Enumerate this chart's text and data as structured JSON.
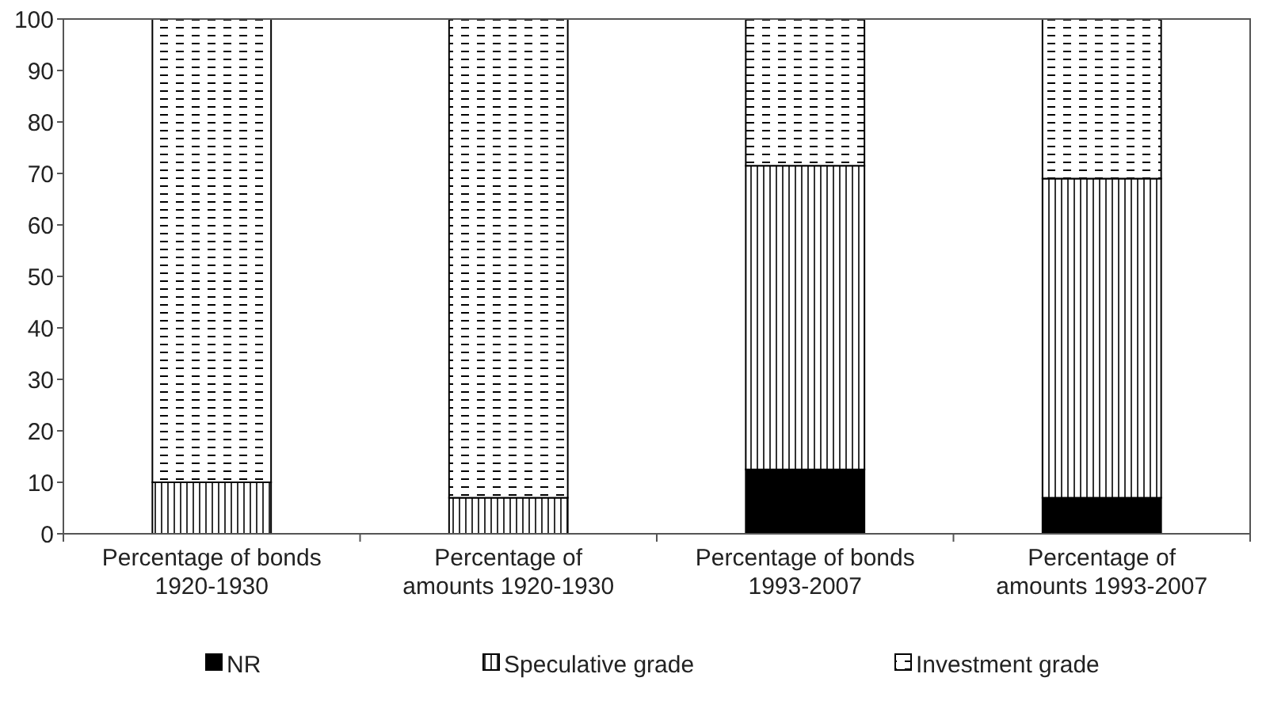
{
  "chart_data": {
    "type": "bar",
    "stacked": true,
    "categories": [
      "Percentage of bonds 1920-1930",
      "Percentage of amounts 1920-1930",
      "Percentage of bonds 1993-2007",
      "Percentage of amounts 1993-2007"
    ],
    "series": [
      {
        "name": "NR",
        "color": "#000000",
        "values": [
          0,
          0,
          12.5,
          7
        ]
      },
      {
        "name": "Speculative grade",
        "color": "#000000",
        "values": [
          10,
          7,
          59,
          62
        ]
      },
      {
        "name": "Investment grade",
        "color": "#000000",
        "values": [
          90,
          93,
          28.5,
          31
        ]
      }
    ],
    "ylim": [
      0,
      100
    ],
    "yticks": [
      0,
      10,
      20,
      30,
      40,
      50,
      60,
      70,
      80,
      90,
      100
    ],
    "grid": false,
    "legend": "bottom"
  }
}
